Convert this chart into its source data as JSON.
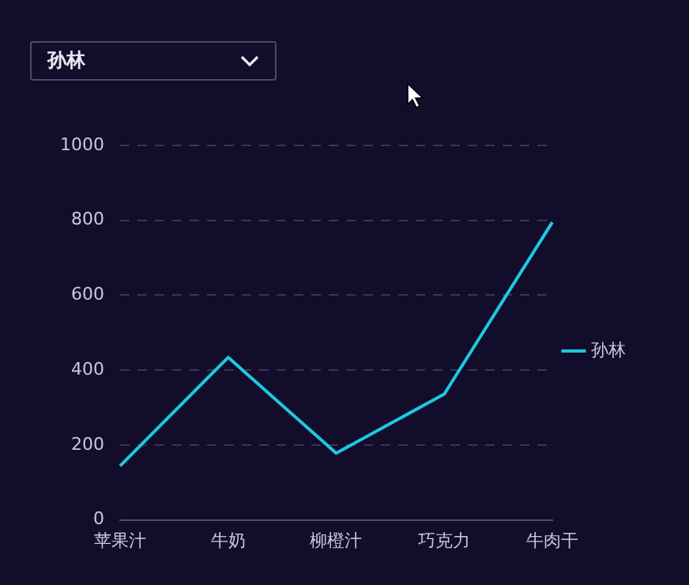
{
  "chart_data": {
    "type": "line",
    "categories": [
      "苹果汁",
      "牛奶",
      "柳橙汁",
      "巧克力",
      "牛肉干"
    ],
    "series": [
      {
        "name": "孙林",
        "color": "#1ec8e0",
        "values": [
          144,
          434,
          178,
          336,
          795
        ]
      }
    ],
    "ylim": [
      0,
      1000
    ],
    "yticks": [
      0,
      200,
      400,
      600,
      800,
      1000
    ],
    "grid": "y",
    "legend": "right",
    "marker": "none",
    "line_style": "solid",
    "annotations": [
      "孙林"
    ]
  }
}
